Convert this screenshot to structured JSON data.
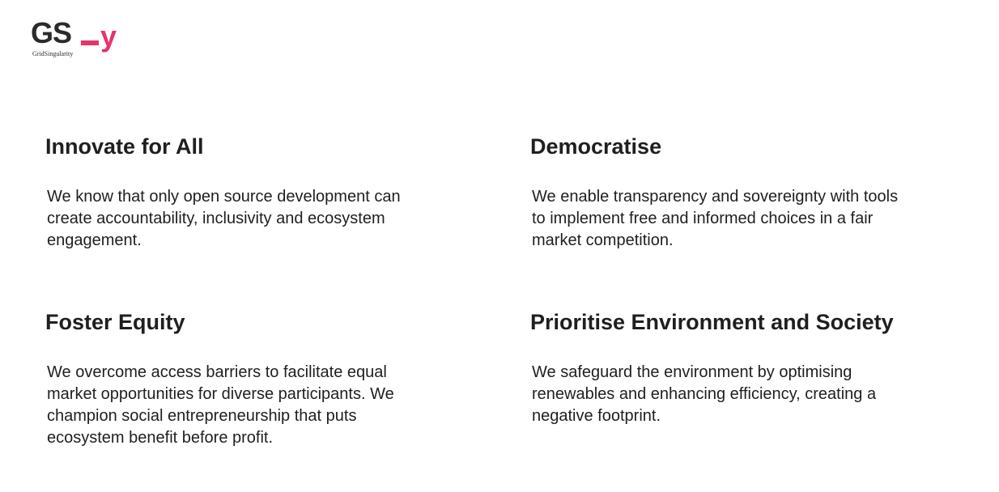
{
  "brand": {
    "logo_text": "GS",
    "logo_accent": "y",
    "logo_subtitle": "GridSingularity",
    "accent_color": "#e8336b",
    "logo_icon": "gs-logo-icon"
  },
  "sections": [
    {
      "title": "Innovate for All",
      "body": "We know that only open source development can create accountability, inclusivity and ecosystem engagement."
    },
    {
      "title": "Democratise",
      "body": "We enable transparency and sovereignty with tools to implement free and informed choices in a fair market competition."
    },
    {
      "title": "Foster Equity",
      "body": "We overcome access barriers to facilitate equal market opportunities for diverse participants. We champion social entrepreneurship that puts ecosystem benefit before profit."
    },
    {
      "title": "Prioritise Environment and Society",
      "body": "We safeguard the environment by optimising renewables and enhancing efficiency, creating a negative footprint."
    }
  ]
}
